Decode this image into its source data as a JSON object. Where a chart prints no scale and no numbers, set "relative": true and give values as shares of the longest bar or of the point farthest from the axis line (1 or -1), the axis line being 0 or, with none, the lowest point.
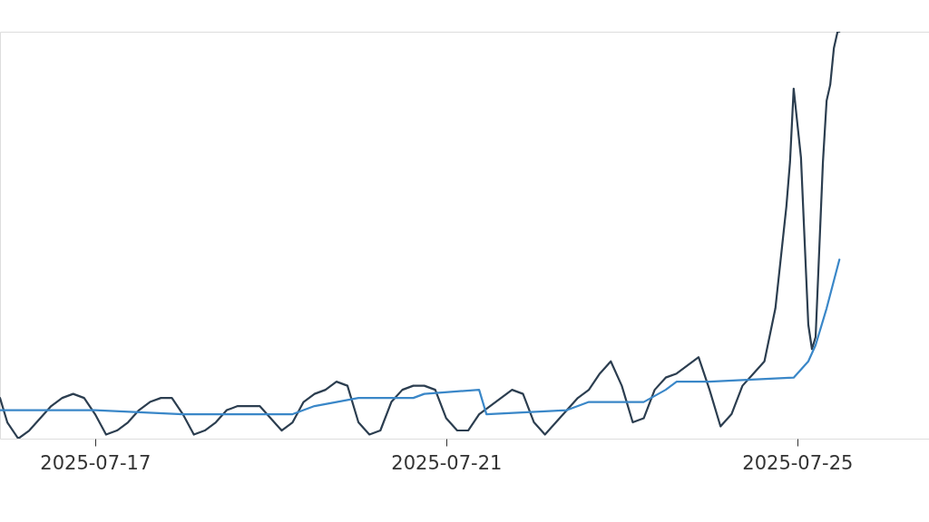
{
  "chart_data": {
    "type": "line",
    "relative": true,
    "grid": false,
    "legend": false,
    "tick_labels": "x",
    "line_style": "solid",
    "marker": "none",
    "xlim": [
      "2025-07-15T22:00",
      "2025-07-26T12:00"
    ],
    "xticks": [
      "2025-07-17",
      "2025-07-21",
      "2025-07-25"
    ],
    "series": [
      {
        "color": "#2c3e50",
        "x": [
          "2025-07-15T22:00",
          "2025-07-16T00:00",
          "2025-07-16T03:00",
          "2025-07-16T06:00",
          "2025-07-16T09:00",
          "2025-07-16T12:00",
          "2025-07-16T15:00",
          "2025-07-16T18:00",
          "2025-07-16T21:00",
          "2025-07-17T00:00",
          "2025-07-17T03:00",
          "2025-07-17T06:00",
          "2025-07-17T09:00",
          "2025-07-17T12:00",
          "2025-07-17T15:00",
          "2025-07-17T18:00",
          "2025-07-17T21:00",
          "2025-07-18T00:00",
          "2025-07-18T03:00",
          "2025-07-18T06:00",
          "2025-07-18T09:00",
          "2025-07-18T12:00",
          "2025-07-18T15:00",
          "2025-07-18T18:00",
          "2025-07-18T21:00",
          "2025-07-19T00:00",
          "2025-07-19T03:00",
          "2025-07-19T06:00",
          "2025-07-19T09:00",
          "2025-07-19T12:00",
          "2025-07-19T15:00",
          "2025-07-19T18:00",
          "2025-07-19T21:00",
          "2025-07-20T00:00",
          "2025-07-20T03:00",
          "2025-07-20T06:00",
          "2025-07-20T09:00",
          "2025-07-20T12:00",
          "2025-07-20T15:00",
          "2025-07-20T18:00",
          "2025-07-20T21:00",
          "2025-07-21T00:00",
          "2025-07-21T03:00",
          "2025-07-21T06:00",
          "2025-07-21T09:00",
          "2025-07-21T12:00",
          "2025-07-21T15:00",
          "2025-07-21T18:00",
          "2025-07-21T21:00",
          "2025-07-22T00:00",
          "2025-07-22T03:00",
          "2025-07-22T06:00",
          "2025-07-22T09:00",
          "2025-07-22T12:00",
          "2025-07-22T15:00",
          "2025-07-22T18:00",
          "2025-07-22T21:00",
          "2025-07-23T00:00",
          "2025-07-23T03:00",
          "2025-07-23T06:00",
          "2025-07-23T09:00",
          "2025-07-23T12:00",
          "2025-07-23T15:00",
          "2025-07-23T18:00",
          "2025-07-23T21:00",
          "2025-07-24T00:00",
          "2025-07-24T03:00",
          "2025-07-24T06:00",
          "2025-07-24T09:00",
          "2025-07-24T12:00",
          "2025-07-24T15:00",
          "2025-07-24T18:00",
          "2025-07-24T21:00",
          "2025-07-24T22:00",
          "2025-07-24T23:00",
          "2025-07-25T01:00",
          "2025-07-25T03:00",
          "2025-07-25T04:00",
          "2025-07-25T05:00",
          "2025-07-25T07:00",
          "2025-07-25T08:00",
          "2025-07-25T09:00",
          "2025-07-25T10:00",
          "2025-07-25T11:00",
          "2025-07-25T11:30"
        ],
        "values": [
          0.1,
          0.04,
          0.0,
          0.02,
          0.05,
          0.08,
          0.1,
          0.11,
          0.1,
          0.06,
          0.01,
          0.02,
          0.04,
          0.07,
          0.09,
          0.1,
          0.1,
          0.06,
          0.01,
          0.02,
          0.04,
          0.07,
          0.08,
          0.08,
          0.08,
          0.05,
          0.02,
          0.04,
          0.09,
          0.11,
          0.12,
          0.14,
          0.13,
          0.04,
          0.01,
          0.02,
          0.09,
          0.12,
          0.13,
          0.13,
          0.12,
          0.05,
          0.02,
          0.02,
          0.06,
          0.08,
          0.1,
          0.12,
          0.11,
          0.04,
          0.01,
          0.04,
          0.07,
          0.1,
          0.12,
          0.16,
          0.19,
          0.13,
          0.04,
          0.05,
          0.12,
          0.15,
          0.16,
          0.18,
          0.2,
          0.12,
          0.03,
          0.06,
          0.13,
          0.16,
          0.19,
          0.32,
          0.57,
          0.68,
          0.86,
          0.69,
          0.28,
          0.22,
          0.25,
          0.68,
          0.83,
          0.87,
          0.96,
          1.0,
          1.0
        ]
      },
      {
        "color": "#3a87c8",
        "x": [
          "2025-07-15T22:00",
          "2025-07-17T00:00",
          "2025-07-18T00:00",
          "2025-07-19T06:00",
          "2025-07-19T12:00",
          "2025-07-19T18:00",
          "2025-07-20T00:00",
          "2025-07-20T15:00",
          "2025-07-20T18:00",
          "2025-07-21T09:00",
          "2025-07-21T11:00",
          "2025-07-22T09:00",
          "2025-07-22T15:00",
          "2025-07-23T06:00",
          "2025-07-23T12:00",
          "2025-07-23T15:00",
          "2025-07-24T00:00",
          "2025-07-24T23:00",
          "2025-07-25T03:00",
          "2025-07-25T05:00",
          "2025-07-25T08:00",
          "2025-07-25T11:30"
        ],
        "values": [
          0.07,
          0.07,
          0.06,
          0.06,
          0.08,
          0.09,
          0.1,
          0.1,
          0.11,
          0.12,
          0.06,
          0.07,
          0.09,
          0.09,
          0.12,
          0.14,
          0.14,
          0.15,
          0.19,
          0.23,
          0.32,
          0.44
        ]
      }
    ]
  }
}
